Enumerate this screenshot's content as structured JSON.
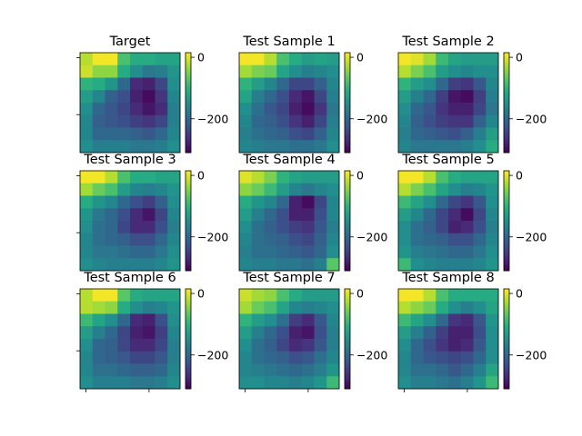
{
  "chart_data": {
    "type": "heatmap",
    "layout": "3x3 grid of heatmaps, each with its own vertical colorbar",
    "colormap": "viridis",
    "value_range": [
      -310,
      15
    ],
    "colorbar_ticks": [
      0,
      -200
    ],
    "colorbar_tick_labels": [
      "0",
      "−200"
    ],
    "grid": false,
    "panels": [
      {
        "title": "Target",
        "z": [
          [
            -20,
            10,
            10,
            -80,
            -110,
            -110,
            -120,
            -120
          ],
          [
            -10,
            -40,
            -40,
            -110,
            -150,
            -180,
            -170,
            -140
          ],
          [
            -100,
            -110,
            -140,
            -200,
            -270,
            -280,
            -240,
            -150
          ],
          [
            -130,
            -160,
            -210,
            -230,
            -280,
            -300,
            -260,
            -160
          ],
          [
            -150,
            -200,
            -220,
            -240,
            -270,
            -290,
            -270,
            -170
          ],
          [
            -160,
            -210,
            -220,
            -230,
            -250,
            -260,
            -240,
            -170
          ],
          [
            -160,
            -200,
            -200,
            -200,
            -210,
            -220,
            -200,
            -160
          ],
          [
            -150,
            -170,
            -170,
            -170,
            -180,
            -180,
            -170,
            -150
          ]
        ]
      },
      {
        "title": "Test Sample 1",
        "z": [
          [
            10,
            10,
            -20,
            -80,
            -110,
            -130,
            -120,
            -130
          ],
          [
            -30,
            -50,
            -60,
            -120,
            -150,
            -170,
            -160,
            -150
          ],
          [
            -100,
            -130,
            -160,
            -200,
            -240,
            -240,
            -210,
            -160
          ],
          [
            -120,
            -170,
            -200,
            -230,
            -270,
            -290,
            -240,
            -170
          ],
          [
            -150,
            -190,
            -220,
            -240,
            -280,
            -300,
            -260,
            -180
          ],
          [
            -160,
            -200,
            -210,
            -230,
            -260,
            -280,
            -240,
            -170
          ],
          [
            -170,
            -190,
            -200,
            -210,
            -230,
            -240,
            -210,
            -160
          ],
          [
            -160,
            -170,
            -180,
            -180,
            -190,
            -190,
            -180,
            -150
          ]
        ]
      },
      {
        "title": "Test Sample 2",
        "z": [
          [
            10,
            0,
            -30,
            -90,
            -120,
            -130,
            -130,
            -130
          ],
          [
            -20,
            -50,
            -80,
            -130,
            -150,
            -160,
            -150,
            -150
          ],
          [
            -100,
            -130,
            -150,
            -200,
            -250,
            -260,
            -220,
            -160
          ],
          [
            -130,
            -170,
            -200,
            -250,
            -290,
            -300,
            -250,
            -170
          ],
          [
            -150,
            -200,
            -220,
            -260,
            -280,
            -280,
            -240,
            -180
          ],
          [
            -160,
            -210,
            -230,
            -250,
            -260,
            -260,
            -210,
            -160
          ],
          [
            -170,
            -200,
            -210,
            -220,
            -230,
            -210,
            -170,
            -130
          ],
          [
            -160,
            -180,
            -180,
            -180,
            -180,
            -170,
            -150,
            -110
          ]
        ]
      },
      {
        "title": "Test Sample 3",
        "z": [
          [
            10,
            10,
            -20,
            -80,
            -110,
            -110,
            -120,
            -120
          ],
          [
            -30,
            -60,
            -80,
            -130,
            -160,
            -170,
            -160,
            -140
          ],
          [
            -110,
            -140,
            -160,
            -200,
            -230,
            -250,
            -210,
            -150
          ],
          [
            -140,
            -180,
            -200,
            -230,
            -270,
            -290,
            -240,
            -160
          ],
          [
            -150,
            -190,
            -200,
            -240,
            -270,
            -270,
            -230,
            -170
          ],
          [
            -160,
            -190,
            -200,
            -210,
            -230,
            -230,
            -200,
            -160
          ],
          [
            -160,
            -180,
            -180,
            -190,
            -200,
            -200,
            -180,
            -150
          ],
          [
            -150,
            -160,
            -170,
            -170,
            -170,
            -170,
            -160,
            -140
          ]
        ]
      },
      {
        "title": "Test Sample 4",
        "z": [
          [
            0,
            -20,
            -50,
            -100,
            -120,
            -130,
            -130,
            -130
          ],
          [
            -40,
            -60,
            -90,
            -130,
            -160,
            -180,
            -160,
            -150
          ],
          [
            -110,
            -140,
            -160,
            -200,
            -280,
            -300,
            -240,
            -160
          ],
          [
            -130,
            -170,
            -200,
            -230,
            -280,
            -280,
            -230,
            -160
          ],
          [
            -150,
            -190,
            -210,
            -230,
            -250,
            -260,
            -220,
            -170
          ],
          [
            -160,
            -190,
            -200,
            -210,
            -230,
            -240,
            -210,
            -160
          ],
          [
            -170,
            -190,
            -190,
            -200,
            -210,
            -220,
            -200,
            -150
          ],
          [
            -160,
            -170,
            -170,
            -180,
            -180,
            -190,
            -170,
            -70
          ]
        ]
      },
      {
        "title": "Test Sample 5",
        "z": [
          [
            10,
            10,
            -20,
            -80,
            -110,
            -120,
            -120,
            -120
          ],
          [
            -20,
            -50,
            -80,
            -120,
            -150,
            -170,
            -160,
            -140
          ],
          [
            -90,
            -120,
            -150,
            -200,
            -240,
            -260,
            -220,
            -150
          ],
          [
            -130,
            -160,
            -200,
            -240,
            -270,
            -300,
            -240,
            -160
          ],
          [
            -150,
            -190,
            -210,
            -240,
            -280,
            -270,
            -230,
            -170
          ],
          [
            -150,
            -190,
            -200,
            -210,
            -230,
            -230,
            -200,
            -160
          ],
          [
            -140,
            -170,
            -180,
            -190,
            -200,
            -200,
            -180,
            -150
          ],
          [
            -90,
            -150,
            -160,
            -170,
            -170,
            -170,
            -160,
            -140
          ]
        ]
      },
      {
        "title": "Test Sample 6",
        "z": [
          [
            -20,
            10,
            10,
            -70,
            -110,
            -120,
            -120,
            -120
          ],
          [
            -20,
            -30,
            -40,
            -110,
            -150,
            -170,
            -160,
            -140
          ],
          [
            -90,
            -120,
            -150,
            -200,
            -270,
            -280,
            -230,
            -150
          ],
          [
            -130,
            -170,
            -200,
            -240,
            -280,
            -290,
            -250,
            -160
          ],
          [
            -150,
            -200,
            -210,
            -240,
            -270,
            -270,
            -240,
            -170
          ],
          [
            -160,
            -200,
            -210,
            -220,
            -240,
            -240,
            -220,
            -170
          ],
          [
            -160,
            -190,
            -190,
            -200,
            -210,
            -210,
            -200,
            -160
          ],
          [
            -150,
            -170,
            -170,
            -170,
            -180,
            -180,
            -170,
            -150
          ]
        ]
      },
      {
        "title": "Test Sample 7",
        "z": [
          [
            -10,
            -30,
            -40,
            -80,
            -110,
            -130,
            -130,
            -130
          ],
          [
            -30,
            -60,
            -80,
            -120,
            -160,
            -170,
            -160,
            -150
          ],
          [
            -100,
            -130,
            -150,
            -190,
            -250,
            -270,
            -220,
            -160
          ],
          [
            -130,
            -170,
            -200,
            -230,
            -280,
            -290,
            -230,
            -170
          ],
          [
            -150,
            -190,
            -210,
            -240,
            -270,
            -260,
            -220,
            -170
          ],
          [
            -160,
            -190,
            -200,
            -210,
            -230,
            -220,
            -190,
            -160
          ],
          [
            -160,
            -170,
            -180,
            -190,
            -200,
            -190,
            -170,
            -140
          ],
          [
            -150,
            -150,
            -160,
            -160,
            -170,
            -160,
            -140,
            -90
          ]
        ]
      },
      {
        "title": "Test Sample 8",
        "z": [
          [
            10,
            10,
            -20,
            -80,
            -110,
            -110,
            -110,
            -110
          ],
          [
            -20,
            -40,
            -60,
            -110,
            -150,
            -170,
            -150,
            -120
          ],
          [
            -90,
            -120,
            -150,
            -200,
            -260,
            -270,
            -220,
            -140
          ],
          [
            -130,
            -170,
            -210,
            -250,
            -280,
            -280,
            -230,
            -150
          ],
          [
            -150,
            -200,
            -230,
            -260,
            -280,
            -270,
            -220,
            -150
          ],
          [
            -160,
            -200,
            -220,
            -230,
            -240,
            -230,
            -200,
            -150
          ],
          [
            -160,
            -190,
            -190,
            -200,
            -220,
            -200,
            -170,
            -120
          ],
          [
            -150,
            -170,
            -170,
            -180,
            -190,
            -170,
            -140,
            -90
          ]
        ]
      }
    ]
  }
}
